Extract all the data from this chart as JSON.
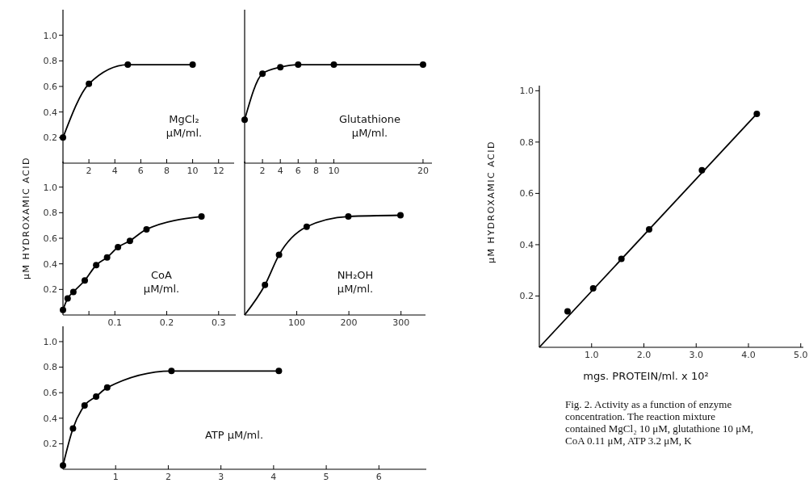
{
  "chart_data": [
    {
      "type": "line",
      "xlabel": "MgCl₂\nμM/ml.",
      "xlim": [
        0,
        13.2
      ],
      "xticks": [
        2,
        4,
        6,
        8,
        10,
        12
      ],
      "ylim": [
        0,
        1.2
      ],
      "yticks": [
        {
          "value": 0.2,
          "label": "0.2"
        },
        {
          "value": 0.4,
          "label": "0.4"
        },
        {
          "value": 0.6,
          "label": "0.6"
        },
        {
          "value": 0.8,
          "label": "0.8"
        },
        {
          "value": 1,
          "label": "1.0"
        }
      ],
      "grid": false,
      "marker": "circle",
      "series": [
        {
          "color": "#000000",
          "x": [
            0,
            2,
            5,
            10
          ],
          "values": [
            0.2,
            0.62,
            0.77,
            0.77
          ]
        }
      ]
    },
    {
      "type": "line",
      "xlabel": "Glutathione\nμM/ml.",
      "xlim": [
        0,
        21
      ],
      "xticks": [
        2,
        4,
        6,
        8,
        10,
        20
      ],
      "ylim": [
        0,
        1.2
      ],
      "grid": false,
      "marker": "circle",
      "series": [
        {
          "color": "#000000",
          "x": [
            0,
            2,
            4,
            6,
            10,
            20
          ],
          "values": [
            0.34,
            0.7,
            0.75,
            0.77,
            0.77,
            0.77
          ]
        }
      ]
    },
    {
      "type": "line",
      "xlabel": "CoA\nμM/ml.",
      "ylabel": "μM HYDROXAMIC ACID",
      "xlim": [
        0,
        0.333
      ],
      "xticks": [
        {
          "value": 0.05,
          "label": null
        },
        {
          "value": 0.1,
          "label": "0.1"
        },
        {
          "value": 0.2,
          "label": "0.2"
        },
        {
          "value": 0.3,
          "label": "0.3"
        }
      ],
      "ylim": [
        0,
        1.2
      ],
      "yticks": [
        {
          "value": 0.2,
          "label": "0.2"
        },
        {
          "value": 0.4,
          "label": "0.4"
        },
        {
          "value": 0.6,
          "label": "0.6"
        },
        {
          "value": 0.8,
          "label": "0.8"
        },
        {
          "value": 1,
          "label": "1.0"
        }
      ],
      "grid": false,
      "marker": "circle",
      "series": [
        {
          "color": "#000000",
          "x": [
            0,
            0.009,
            0.02,
            0.042,
            0.064,
            0.085,
            0.106,
            0.129,
            0.161,
            0.267
          ],
          "values": [
            0.04,
            0.13,
            0.18,
            0.27,
            0.39,
            0.45,
            0.53,
            0.58,
            0.67,
            0.77
          ]
        }
      ]
    },
    {
      "type": "line",
      "xlabel": "NH₂OH\nμM/ml.",
      "xlim": [
        0,
        347
      ],
      "xticks": [
        100,
        200,
        300
      ],
      "ylim": [
        0,
        1.2
      ],
      "grid": false,
      "marker": "circle",
      "series": [
        {
          "type": "line",
          "marker": "none",
          "color": "#000000",
          "x": [
            0,
            39,
            66,
            119,
            199,
            299
          ],
          "values": [
            0,
            0.235,
            0.47,
            0.69,
            0.77,
            0.78
          ]
        },
        {
          "type": "scatter",
          "color": "#000000",
          "x": [
            39,
            66,
            119,
            199,
            299
          ],
          "values": [
            0.235,
            0.47,
            0.69,
            0.77,
            0.78
          ]
        }
      ]
    },
    {
      "type": "line",
      "xlabel": "ATP μM/ml.",
      "xlim": [
        0,
        6.9
      ],
      "xticks": [
        1,
        2,
        3,
        4,
        5,
        6
      ],
      "ylim": [
        0,
        1.12
      ],
      "yticks": [
        {
          "value": 0.2,
          "label": "0.2"
        },
        {
          "value": 0.4,
          "label": "0.4"
        },
        {
          "value": 0.6,
          "label": "0.6"
        },
        {
          "value": 0.8,
          "label": "0.8"
        },
        {
          "value": 1,
          "label": "1.0"
        }
      ],
      "grid": false,
      "marker": "circle",
      "series": [
        {
          "color": "#000000",
          "x": [
            0,
            0.19,
            0.41,
            0.63,
            0.84,
            2.06,
            4.1
          ],
          "values": [
            0.03,
            0.32,
            0.5,
            0.57,
            0.64,
            0.77,
            0.77
          ]
        }
      ]
    },
    {
      "type": "line",
      "xlabel": "mgs. PROTEIN/ml. x 10²",
      "ylabel": "μM HYDROXAMIC ACID",
      "xlim": [
        0,
        5.05
      ],
      "xticks": [
        {
          "value": 1,
          "label": "1.0"
        },
        {
          "value": 2,
          "label": "2.0"
        },
        {
          "value": 3,
          "label": "3.0"
        },
        {
          "value": 4,
          "label": "4.0"
        },
        {
          "value": 5,
          "label": "5.0"
        }
      ],
      "ylim": [
        0,
        1.02
      ],
      "yticks": [
        {
          "value": 0.2,
          "label": "0.2"
        },
        {
          "value": 0.4,
          "label": "0.4"
        },
        {
          "value": 0.6,
          "label": "0.6"
        },
        {
          "value": 0.8,
          "label": "0.8"
        },
        {
          "value": 1,
          "label": "1.0"
        }
      ],
      "grid": false,
      "marker": "circle",
      "annotations": [
        "Fig. 2. Activity as a function of enzyme concentration. The reaction mixture contained MgCl₂ 10 μM, glutathione 10 μM, CoA 0.11 μM, ATP 3.2 μM, K"
      ],
      "series": [
        {
          "type": "line",
          "marker": "none",
          "color": "#000000",
          "x": [
            0,
            4.16
          ],
          "values": [
            0,
            0.91
          ]
        },
        {
          "type": "scatter",
          "color": "#000000",
          "x": [
            0.54,
            1.03,
            1.57,
            2.1,
            3.11,
            4.16
          ],
          "values": [
            0.14,
            0.23,
            0.345,
            0.46,
            0.69,
            0.91
          ]
        }
      ]
    }
  ]
}
